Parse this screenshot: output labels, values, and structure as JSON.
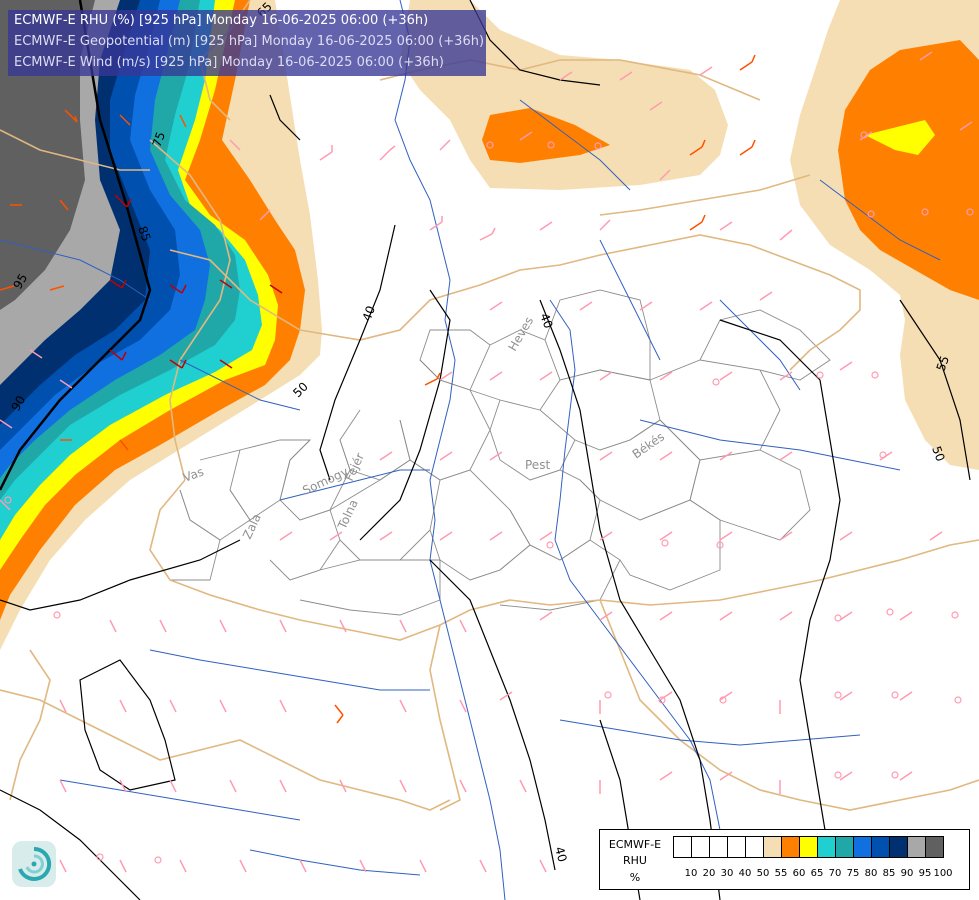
{
  "titles": {
    "line1": "ECMWF-E RHU (%) [925 hPa] Monday 16-06-2025 06:00 (+36h)",
    "line2": "ECMWF-E Geopotential (m) [925 hPa] Monday 16-06-2025 06:00 (+36h)",
    "line3": "ECMWF-E Wind (m/s) [925 hPa] Monday 16-06-2025 06:00 (+36h)"
  },
  "legend": {
    "line1": "ECMWF-E",
    "line2": "RHU",
    "line3": "%",
    "ticks": [
      "10",
      "20",
      "30",
      "40",
      "50",
      "55",
      "60",
      "65",
      "70",
      "75",
      "80",
      "85",
      "90",
      "95",
      "100"
    ],
    "colors": [
      "#ffffff",
      "#ffffff",
      "#ffffff",
      "#ffffff",
      "#ffffff",
      "#f5deb3",
      "#ff8000",
      "#ffff00",
      "#20d0d0",
      "#20a8a8",
      "#1070e0",
      "#0050b0",
      "#003070",
      "#a8a8a8",
      "#606060"
    ]
  },
  "contour_labels": {
    "l95": "95",
    "l90": "90",
    "l85": "85",
    "l75": "75",
    "l65": "65",
    "l55": "55",
    "l50a": "50",
    "l50b": "50",
    "l40a": "40",
    "l40b": "40",
    "l40c": "40"
  },
  "regions": {
    "heves": "Heves",
    "pest": "Pest",
    "bekes": "Békés",
    "vas": "Vas",
    "zala": "Zala",
    "somogy": "Somogy",
    "fejer": "Fejér",
    "tolna": "Tolna"
  },
  "colors": {
    "rh55": "#f5deb3",
    "rh60": "#ff8000",
    "rh65": "#ffff00",
    "rh70": "#20d0d0",
    "rh75": "#20a8a8",
    "rh80": "#1070e0",
    "rh85": "#0050b0",
    "rh90": "#003070",
    "rh95": "#a8a8a8",
    "rh100": "#606060",
    "river": "#3060c0",
    "county_border": "#8c8c8c",
    "country_border": "#e0b880",
    "geopotential": "#000000",
    "wind_barb": "#ff9ab0",
    "wind_barb_strong": "#ff5000",
    "wind_barb_dark": "#c00000"
  }
}
